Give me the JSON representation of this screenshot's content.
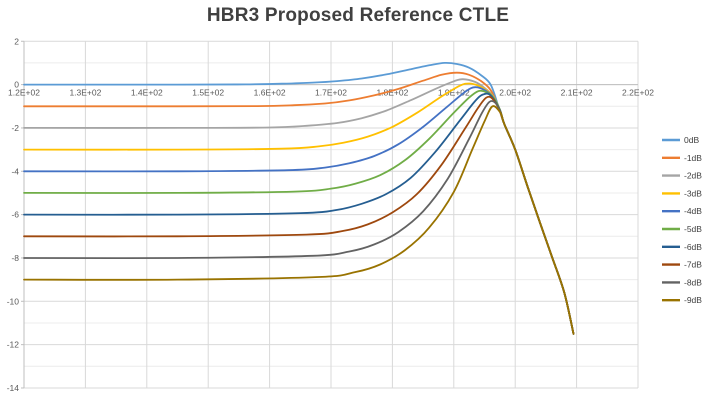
{
  "styles": {
    "background": "#ffffff",
    "title_color": "#404040",
    "axis_label_color": "#595959",
    "legend_text_color": "#404040",
    "major_grid_color": "#d9d9d9",
    "minor_grid_color": "#ececec",
    "axis_line_color": "#bfbfbf"
  },
  "chart_data": {
    "type": "line",
    "title": "HBR3 Proposed Reference CTLE",
    "legend_position": "right",
    "grid": {
      "vertical_major": true,
      "horizontal_major": true,
      "horizontal_minor": true
    },
    "x_axis": {
      "min": 120,
      "max": 220,
      "major_step": 10,
      "tick_labels": [
        "1.2E+02",
        "1.3E+02",
        "1.4E+02",
        "1.5E+02",
        "1.6E+02",
        "1.7E+02",
        "1.8E+02",
        "1.9E+02",
        "2.0E+02",
        "2.1E+02",
        "2.2E+02"
      ]
    },
    "y_axis": {
      "min": -14,
      "max": 2,
      "major_step": 2,
      "minor_step": 1,
      "tick_labels": [
        "2",
        "0",
        "-2",
        "-4",
        "-6",
        "-8",
        "-10",
        "-12",
        "-14"
      ]
    },
    "common_tail_points": [
      [
        198.2,
        -1.8
      ],
      [
        200,
        -3.0
      ],
      [
        202,
        -4.7
      ],
      [
        204,
        -6.35
      ],
      [
        206,
        -7.95
      ],
      [
        208,
        -9.6
      ],
      [
        209.5,
        -11.5
      ]
    ],
    "series": [
      {
        "name": "0dB",
        "color": "#5B9BD5",
        "dc_gain_db": 0,
        "peak": [
          188.5,
          1.0
        ],
        "points": [
          [
            120,
            0
          ],
          [
            145,
            0
          ],
          [
            156,
            0.01
          ],
          [
            162,
            0.04
          ],
          [
            167,
            0.09
          ],
          [
            171,
            0.16
          ],
          [
            175,
            0.28
          ],
          [
            179,
            0.47
          ],
          [
            183,
            0.71
          ],
          [
            186,
            0.89
          ],
          [
            188.5,
            1.0
          ],
          [
            190.5,
            0.95
          ],
          [
            192.5,
            0.78
          ],
          [
            194.5,
            0.42
          ],
          [
            196,
            0.0
          ],
          [
            197.2,
            -0.95
          ]
        ]
      },
      {
        "name": "-1dB",
        "color": "#ED7D31",
        "dc_gain_db": -1,
        "peak": [
          190.5,
          0.55
        ],
        "points": [
          [
            120,
            -1
          ],
          [
            145,
            -1
          ],
          [
            158,
            -0.99
          ],
          [
            164,
            -0.95
          ],
          [
            169,
            -0.87
          ],
          [
            173,
            -0.73
          ],
          [
            177,
            -0.5
          ],
          [
            181,
            -0.2
          ],
          [
            185,
            0.18
          ],
          [
            188,
            0.45
          ],
          [
            190.5,
            0.55
          ],
          [
            192.5,
            0.45
          ],
          [
            194.5,
            0.15
          ],
          [
            196,
            -0.25
          ],
          [
            197.2,
            -1.0
          ]
        ]
      },
      {
        "name": "-2dB",
        "color": "#A5A5A5",
        "dc_gain_db": -2,
        "peak": [
          191.5,
          0.25
        ],
        "points": [
          [
            120,
            -2
          ],
          [
            145,
            -2
          ],
          [
            160,
            -1.98
          ],
          [
            166,
            -1.9
          ],
          [
            171,
            -1.77
          ],
          [
            175,
            -1.55
          ],
          [
            179,
            -1.2
          ],
          [
            183,
            -0.72
          ],
          [
            187,
            -0.2
          ],
          [
            190,
            0.15
          ],
          [
            191.5,
            0.25
          ],
          [
            193.5,
            0.12
          ],
          [
            195,
            -0.15
          ],
          [
            196.3,
            -0.5
          ],
          [
            197.3,
            -1.05
          ]
        ]
      },
      {
        "name": "-3dB",
        "color": "#FFC000",
        "dc_gain_db": -3,
        "peak": [
          192.5,
          0.05
        ],
        "points": [
          [
            120,
            -3
          ],
          [
            145,
            -3
          ],
          [
            162,
            -2.96
          ],
          [
            168,
            -2.85
          ],
          [
            172,
            -2.68
          ],
          [
            176,
            -2.4
          ],
          [
            180,
            -1.95
          ],
          [
            184,
            -1.3
          ],
          [
            188,
            -0.55
          ],
          [
            191,
            -0.05
          ],
          [
            192.5,
            0.05
          ],
          [
            194,
            -0.05
          ],
          [
            195.5,
            -0.3
          ],
          [
            196.5,
            -0.6
          ],
          [
            197.4,
            -1.1
          ]
        ]
      },
      {
        "name": "-4dB",
        "color": "#4472C4",
        "dc_gain_db": -4,
        "peak": [
          193.5,
          -0.12
        ],
        "points": [
          [
            120,
            -4
          ],
          [
            145,
            -4
          ],
          [
            163,
            -3.95
          ],
          [
            169,
            -3.83
          ],
          [
            173,
            -3.63
          ],
          [
            177,
            -3.3
          ],
          [
            181,
            -2.75
          ],
          [
            185,
            -1.95
          ],
          [
            189,
            -1.0
          ],
          [
            192,
            -0.3
          ],
          [
            193.5,
            -0.12
          ],
          [
            195,
            -0.25
          ],
          [
            196.3,
            -0.55
          ],
          [
            197.4,
            -1.12
          ]
        ]
      },
      {
        "name": "-5dB",
        "color": "#70AD47",
        "dc_gain_db": -5,
        "peak": [
          194,
          -0.3
        ],
        "points": [
          [
            120,
            -5
          ],
          [
            145,
            -5
          ],
          [
            164,
            -4.94
          ],
          [
            170,
            -4.8
          ],
          [
            174,
            -4.57
          ],
          [
            178,
            -4.18
          ],
          [
            182,
            -3.5
          ],
          [
            186,
            -2.5
          ],
          [
            190,
            -1.3
          ],
          [
            192.5,
            -0.6
          ],
          [
            194,
            -0.3
          ],
          [
            195.3,
            -0.35
          ],
          [
            196.5,
            -0.62
          ],
          [
            197.5,
            -1.15
          ]
        ]
      },
      {
        "name": "-6dB",
        "color": "#255E91",
        "dc_gain_db": -6,
        "peak": [
          194.8,
          -0.45
        ],
        "points": [
          [
            120,
            -6
          ],
          [
            145,
            -6
          ],
          [
            165,
            -5.93
          ],
          [
            171,
            -5.78
          ],
          [
            175,
            -5.5
          ],
          [
            179,
            -5.05
          ],
          [
            183,
            -4.3
          ],
          [
            187,
            -3.1
          ],
          [
            191,
            -1.65
          ],
          [
            193.5,
            -0.75
          ],
          [
            194.8,
            -0.45
          ],
          [
            196,
            -0.5
          ],
          [
            197.5,
            -1.18
          ]
        ]
      },
      {
        "name": "-7dB",
        "color": "#9E480E",
        "dc_gain_db": -7,
        "peak": [
          195.3,
          -0.6
        ],
        "points": [
          [
            120,
            -7
          ],
          [
            145,
            -7
          ],
          [
            166,
            -6.92
          ],
          [
            172,
            -6.75
          ],
          [
            176,
            -6.45
          ],
          [
            180,
            -5.9
          ],
          [
            184,
            -5.05
          ],
          [
            188,
            -3.7
          ],
          [
            192,
            -1.95
          ],
          [
            194,
            -1.05
          ],
          [
            195.3,
            -0.6
          ],
          [
            196.3,
            -0.65
          ],
          [
            197.5,
            -1.2
          ]
        ]
      },
      {
        "name": "-8dB",
        "color": "#636363",
        "dc_gain_db": -8,
        "peak": [
          195.8,
          -0.8
        ],
        "points": [
          [
            120,
            -8
          ],
          [
            145,
            -8
          ],
          [
            167,
            -7.9
          ],
          [
            173,
            -7.7
          ],
          [
            177,
            -7.38
          ],
          [
            181,
            -6.8
          ],
          [
            185,
            -5.85
          ],
          [
            189,
            -4.35
          ],
          [
            192.5,
            -2.5
          ],
          [
            194.5,
            -1.35
          ],
          [
            195.8,
            -0.8
          ],
          [
            196.8,
            -0.85
          ],
          [
            197.6,
            -1.25
          ]
        ]
      },
      {
        "name": "-9dB",
        "color": "#997300",
        "dc_gain_db": -9,
        "peak": [
          196.3,
          -1.0
        ],
        "points": [
          [
            120,
            -9
          ],
          [
            145,
            -9
          ],
          [
            168,
            -8.88
          ],
          [
            174,
            -8.65
          ],
          [
            178,
            -8.3
          ],
          [
            182,
            -7.65
          ],
          [
            186,
            -6.6
          ],
          [
            190,
            -4.95
          ],
          [
            193,
            -3.0
          ],
          [
            195,
            -1.7
          ],
          [
            196.3,
            -1.0
          ],
          [
            197.6,
            -1.3
          ]
        ]
      }
    ]
  }
}
